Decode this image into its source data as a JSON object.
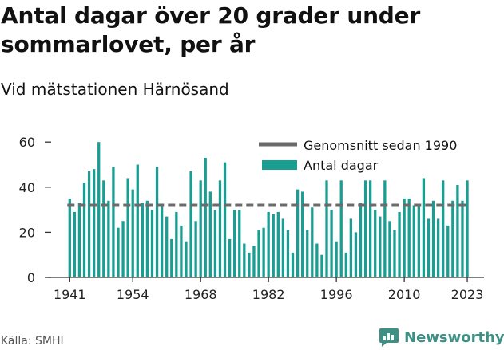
{
  "title": "Antal dagar över 20 grader under sommarlovet, per år",
  "subtitle": "Vid mätstationen Härnösand",
  "source": "Källa: SMHI",
  "brand": {
    "name": "Newsworthy",
    "color": "#3e8f84"
  },
  "colors": {
    "bar": "#1a9e92",
    "avg_line": "#6b6b6b",
    "axis": "#333333"
  },
  "chart_data": {
    "type": "bar",
    "categories": [
      1941,
      1942,
      1943,
      1944,
      1945,
      1946,
      1947,
      1948,
      1949,
      1950,
      1951,
      1952,
      1953,
      1954,
      1955,
      1956,
      1957,
      1958,
      1959,
      1960,
      1961,
      1962,
      1963,
      1964,
      1965,
      1966,
      1967,
      1968,
      1969,
      1970,
      1971,
      1972,
      1973,
      1974,
      1975,
      1976,
      1977,
      1978,
      1979,
      1980,
      1981,
      1982,
      1983,
      1984,
      1985,
      1986,
      1987,
      1988,
      1989,
      1990,
      1991,
      1992,
      1993,
      1994,
      1995,
      1996,
      1997,
      1998,
      1999,
      2000,
      2001,
      2002,
      2003,
      2004,
      2005,
      2006,
      2007,
      2008,
      2009,
      2010,
      2011,
      2012,
      2013,
      2014,
      2015,
      2016,
      2017,
      2018,
      2019,
      2020,
      2021,
      2022,
      2023
    ],
    "x_tick_labels": [
      "1941",
      "1954",
      "1968",
      "1982",
      "1996",
      "2010",
      "2023"
    ],
    "y_ticks": [
      0,
      20,
      40,
      60
    ],
    "ylim": [
      0,
      62
    ],
    "series": [
      {
        "name": "Antal dagar",
        "values": [
          35,
          29,
          33,
          42,
          47,
          48,
          60,
          43,
          34,
          49,
          22,
          25,
          44,
          39,
          50,
          33,
          34,
          30,
          49,
          32,
          27,
          17,
          29,
          23,
          16,
          47,
          25,
          43,
          53,
          38,
          30,
          43,
          51,
          17,
          30,
          30,
          15,
          11,
          14,
          21,
          22,
          29,
          28,
          29,
          26,
          21,
          11,
          39,
          38,
          21,
          31,
          15,
          10,
          43,
          30,
          16,
          43,
          11,
          26,
          20,
          33,
          43,
          43,
          30,
          27,
          43,
          25,
          21,
          29,
          35,
          35,
          32,
          32,
          44,
          26,
          34,
          26,
          43,
          23,
          34,
          41,
          34,
          43
        ]
      },
      {
        "name": "Genomsnitt sedan 1990",
        "type": "line",
        "value": 32,
        "start": 1941
      }
    ],
    "legend_position": "top-right",
    "grid": false
  }
}
